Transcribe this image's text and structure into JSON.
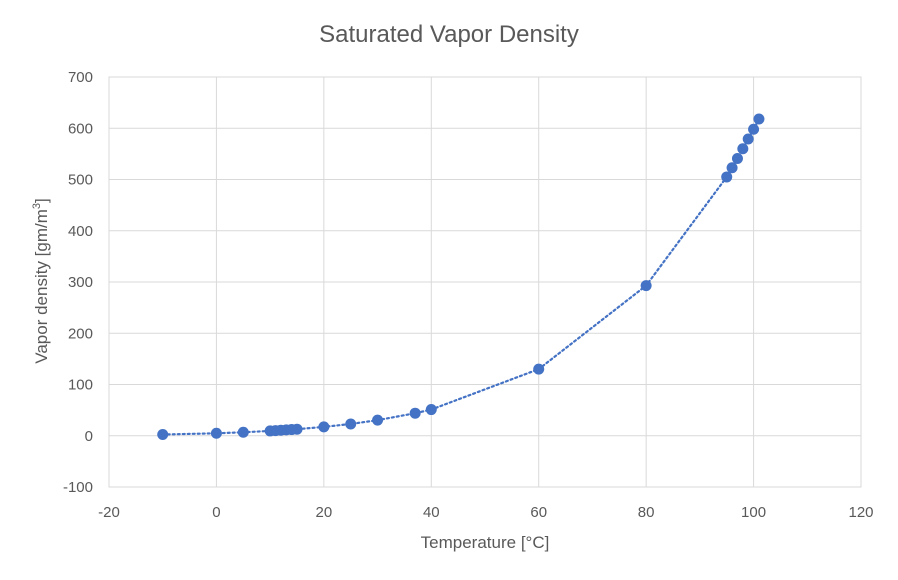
{
  "chart_data": {
    "type": "scatter",
    "title": "Saturated Vapor Density",
    "xlabel": "Temperature [°C]",
    "ylabel_main": "Vapor density [gm/m",
    "ylabel_sup": "3",
    "ylabel_end": "]",
    "xlim": [
      -20,
      120
    ],
    "ylim": [
      -100,
      700
    ],
    "xticks": [
      -20,
      0,
      20,
      40,
      60,
      80,
      100,
      120
    ],
    "yticks": [
      -100,
      0,
      100,
      200,
      300,
      400,
      500,
      600,
      700
    ],
    "grid": true,
    "legend": "none",
    "colors": {
      "marker": "#4472c4",
      "trendline": "#4472c4",
      "grid": "#d9d9d9",
      "text": "#595959"
    },
    "trendline": {
      "style": "dotted",
      "type": "smooth curve"
    },
    "series": [
      {
        "x": [
          -10,
          0,
          5,
          10,
          11,
          12,
          13,
          14,
          15,
          20,
          25,
          30,
          37,
          40,
          60,
          80,
          95,
          96,
          97,
          98,
          99,
          100,
          101
        ],
        "y": [
          2.4,
          4.8,
          6.8,
          9.4,
          10.0,
          10.7,
          11.4,
          12.1,
          12.8,
          17.3,
          23.0,
          30.4,
          44.0,
          51.1,
          130,
          293,
          505,
          523,
          541,
          560,
          579,
          598,
          618
        ]
      }
    ]
  }
}
